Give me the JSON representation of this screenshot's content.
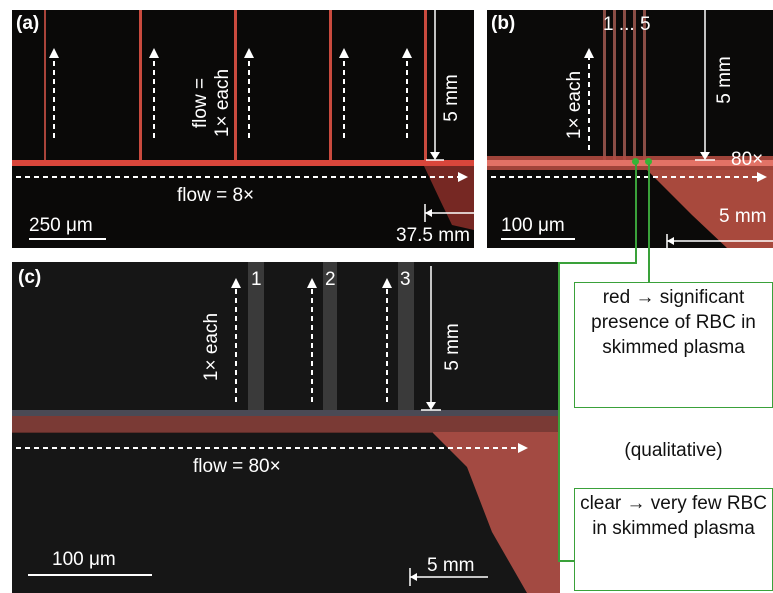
{
  "panel_a": {
    "label": "(a)",
    "flow_branch": "flow =\n1× each",
    "flow_main": "flow = 8×",
    "length_branch": "5 mm",
    "length_main": "37.5 mm",
    "scale": "250 μm"
  },
  "panel_b": {
    "label": "(b)",
    "channel_range": "1 ... 5",
    "flow_branch": "1× each",
    "length_branch": "5 mm",
    "flow_main": "80×",
    "length_main": "5 mm",
    "scale": "100 μm"
  },
  "panel_c": {
    "label": "(c)",
    "channel_1": "1",
    "channel_2": "2",
    "channel_3": "3",
    "flow_branch": "1× each",
    "length_branch": "5 mm",
    "flow_main": "flow = 80×",
    "length_main": "5 mm",
    "scale": "100 μm"
  },
  "annotations": {
    "red_note": "red → significant presence of RBC in skimmed plasma",
    "qualitative": "(qualitative)",
    "clear_note": "clear → very few RBC in skimmed plasma"
  },
  "colors": {
    "red_stream": "#e0453a",
    "annotation_green": "#3aa13a",
    "background_dark": "#0b0a0a"
  }
}
